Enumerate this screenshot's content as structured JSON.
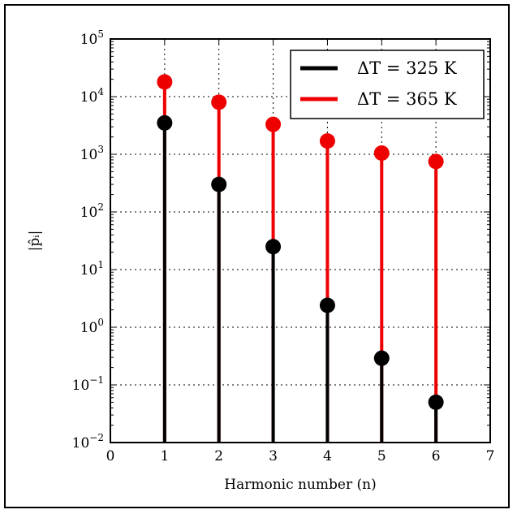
{
  "chart_data": {
    "type": "stem",
    "xlabel": "Harmonic number (n)",
    "ylabel": "|p̂ᵢ|",
    "xlim": [
      0,
      7
    ],
    "ylim": [
      0.01,
      100000
    ],
    "yscale": "log",
    "grid": true,
    "legend_placement": "top-right",
    "x_ticks": [
      "0",
      "1",
      "2",
      "3",
      "4",
      "5",
      "6",
      "7"
    ],
    "y_ticks": [
      {
        "base": "10",
        "exp": "−2"
      },
      {
        "base": "10",
        "exp": "−1"
      },
      {
        "base": "10",
        "exp": "0"
      },
      {
        "base": "10",
        "exp": "1"
      },
      {
        "base": "10",
        "exp": "2"
      },
      {
        "base": "10",
        "exp": "3"
      },
      {
        "base": "10",
        "exp": "4"
      },
      {
        "base": "10",
        "exp": "5"
      }
    ],
    "series": [
      {
        "name": "ΔT = 325 K",
        "color": "#000000",
        "x": [
          1,
          2,
          3,
          4,
          5,
          6
        ],
        "values": [
          3500,
          300,
          25,
          2.4,
          0.29,
          0.05
        ]
      },
      {
        "name": "ΔT = 365 K",
        "color": "#ee0000",
        "x": [
          1,
          2,
          3,
          4,
          5,
          6
        ],
        "values": [
          18000,
          8000,
          3300,
          1700,
          1050,
          750
        ]
      }
    ]
  }
}
